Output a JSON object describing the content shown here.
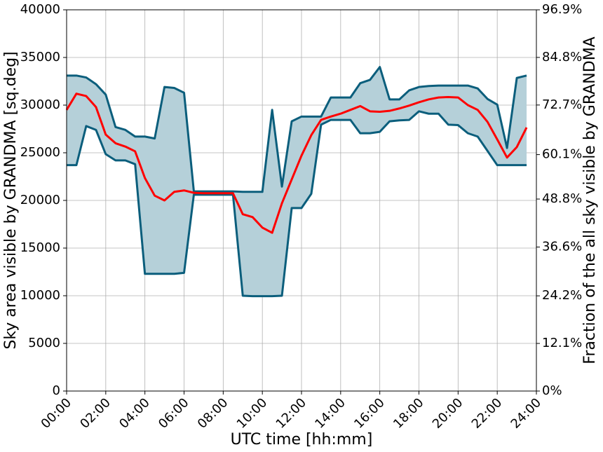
{
  "chart_data": {
    "type": "line",
    "xlabel": "UTC time [hh:mm]",
    "ylabel": "Sky area visible by GRANDMA [sq.deg]",
    "y2label": "Fraction of the all sky visible by GRANDMA",
    "x": [
      0,
      0.5,
      1,
      1.5,
      2,
      2.5,
      3,
      3.5,
      4,
      4.5,
      5,
      5.5,
      6,
      6.5,
      7,
      7.5,
      8,
      8.5,
      9,
      9.5,
      10,
      10.5,
      11,
      11.5,
      12,
      12.5,
      13,
      13.5,
      14,
      14.5,
      15,
      15.5,
      16,
      16.5,
      17,
      17.5,
      18,
      18.5,
      19,
      19.5,
      20,
      20.5,
      21,
      21.5,
      22,
      22.5,
      23,
      23.5
    ],
    "series": [
      {
        "color": "#0b5e7c",
        "values": [
          33100,
          33100,
          32900,
          32200,
          31100,
          27700,
          27400,
          26700,
          26700,
          26500,
          31900,
          31800,
          31300,
          20950,
          20950,
          20950,
          20950,
          20950,
          20900,
          20900,
          20900,
          29500,
          21450,
          28300,
          28800,
          28800,
          28800,
          30800,
          30800,
          30800,
          32300,
          32650,
          34000,
          30600,
          30600,
          31550,
          31900,
          32000,
          32050,
          32050,
          32050,
          32050,
          31750,
          30650,
          30050,
          25500,
          32850,
          33100
        ]
      },
      {
        "color": "#0b5e7c",
        "values": [
          23700,
          23700,
          27800,
          27400,
          24850,
          24200,
          24200,
          23800,
          12300,
          12300,
          12300,
          12300,
          12400,
          20600,
          20600,
          20600,
          20600,
          20600,
          10000,
          9950,
          9950,
          9950,
          10000,
          19200,
          19200,
          20700,
          27950,
          28450,
          28450,
          28450,
          27050,
          27050,
          27200,
          28300,
          28400,
          28450,
          29350,
          29100,
          29100,
          27950,
          27900,
          27050,
          26700,
          25200,
          23700,
          23700,
          23700,
          23700
        ]
      },
      {
        "color": "#ff0000",
        "values": [
          29500,
          31200,
          30950,
          29800,
          26900,
          26000,
          25650,
          25150,
          22350,
          20500,
          20000,
          20900,
          21050,
          20800,
          20750,
          20750,
          20750,
          20750,
          18550,
          18250,
          17150,
          16600,
          19700,
          22200,
          24700,
          26850,
          28450,
          28800,
          29100,
          29500,
          29900,
          29350,
          29300,
          29400,
          29650,
          29950,
          30300,
          30600,
          30800,
          30850,
          30800,
          30000,
          29500,
          28250,
          26400,
          24500,
          25600,
          27650
        ]
      }
    ],
    "fill_color": "#b5d0d9",
    "xlim": [
      0,
      24
    ],
    "xticks": [
      {
        "value": 0,
        "label": "00:00"
      },
      {
        "value": 2,
        "label": "02:00"
      },
      {
        "value": 4,
        "label": "04:00"
      },
      {
        "value": 6,
        "label": "06:00"
      },
      {
        "value": 8,
        "label": "08:00"
      },
      {
        "value": 10,
        "label": "10:00"
      },
      {
        "value": 12,
        "label": "12:00"
      },
      {
        "value": 14,
        "label": "14:00"
      },
      {
        "value": 16,
        "label": "16:00"
      },
      {
        "value": 18,
        "label": "18:00"
      },
      {
        "value": 20,
        "label": "20:00"
      },
      {
        "value": 22,
        "label": "22:00"
      },
      {
        "value": 24,
        "label": "24:00"
      }
    ],
    "ylim": [
      0,
      40000
    ],
    "yticks": [
      0,
      5000,
      10000,
      15000,
      20000,
      25000,
      30000,
      35000,
      40000
    ],
    "y2lim": [
      0,
      96.9
    ],
    "y2ticks": [
      {
        "value": 0,
        "label": "0%"
      },
      {
        "value": 12.1,
        "label": "12.1%"
      },
      {
        "value": 24.2,
        "label": "24.2%"
      },
      {
        "value": 36.6,
        "label": "36.6%"
      },
      {
        "value": 48.8,
        "label": "48.8%"
      },
      {
        "value": 60.1,
        "label": "60.1%"
      },
      {
        "value": 72.7,
        "label": "72.7%"
      },
      {
        "value": 84.8,
        "label": "84.8%"
      },
      {
        "value": 96.9,
        "label": "96.9%"
      }
    ],
    "grid": true
  }
}
